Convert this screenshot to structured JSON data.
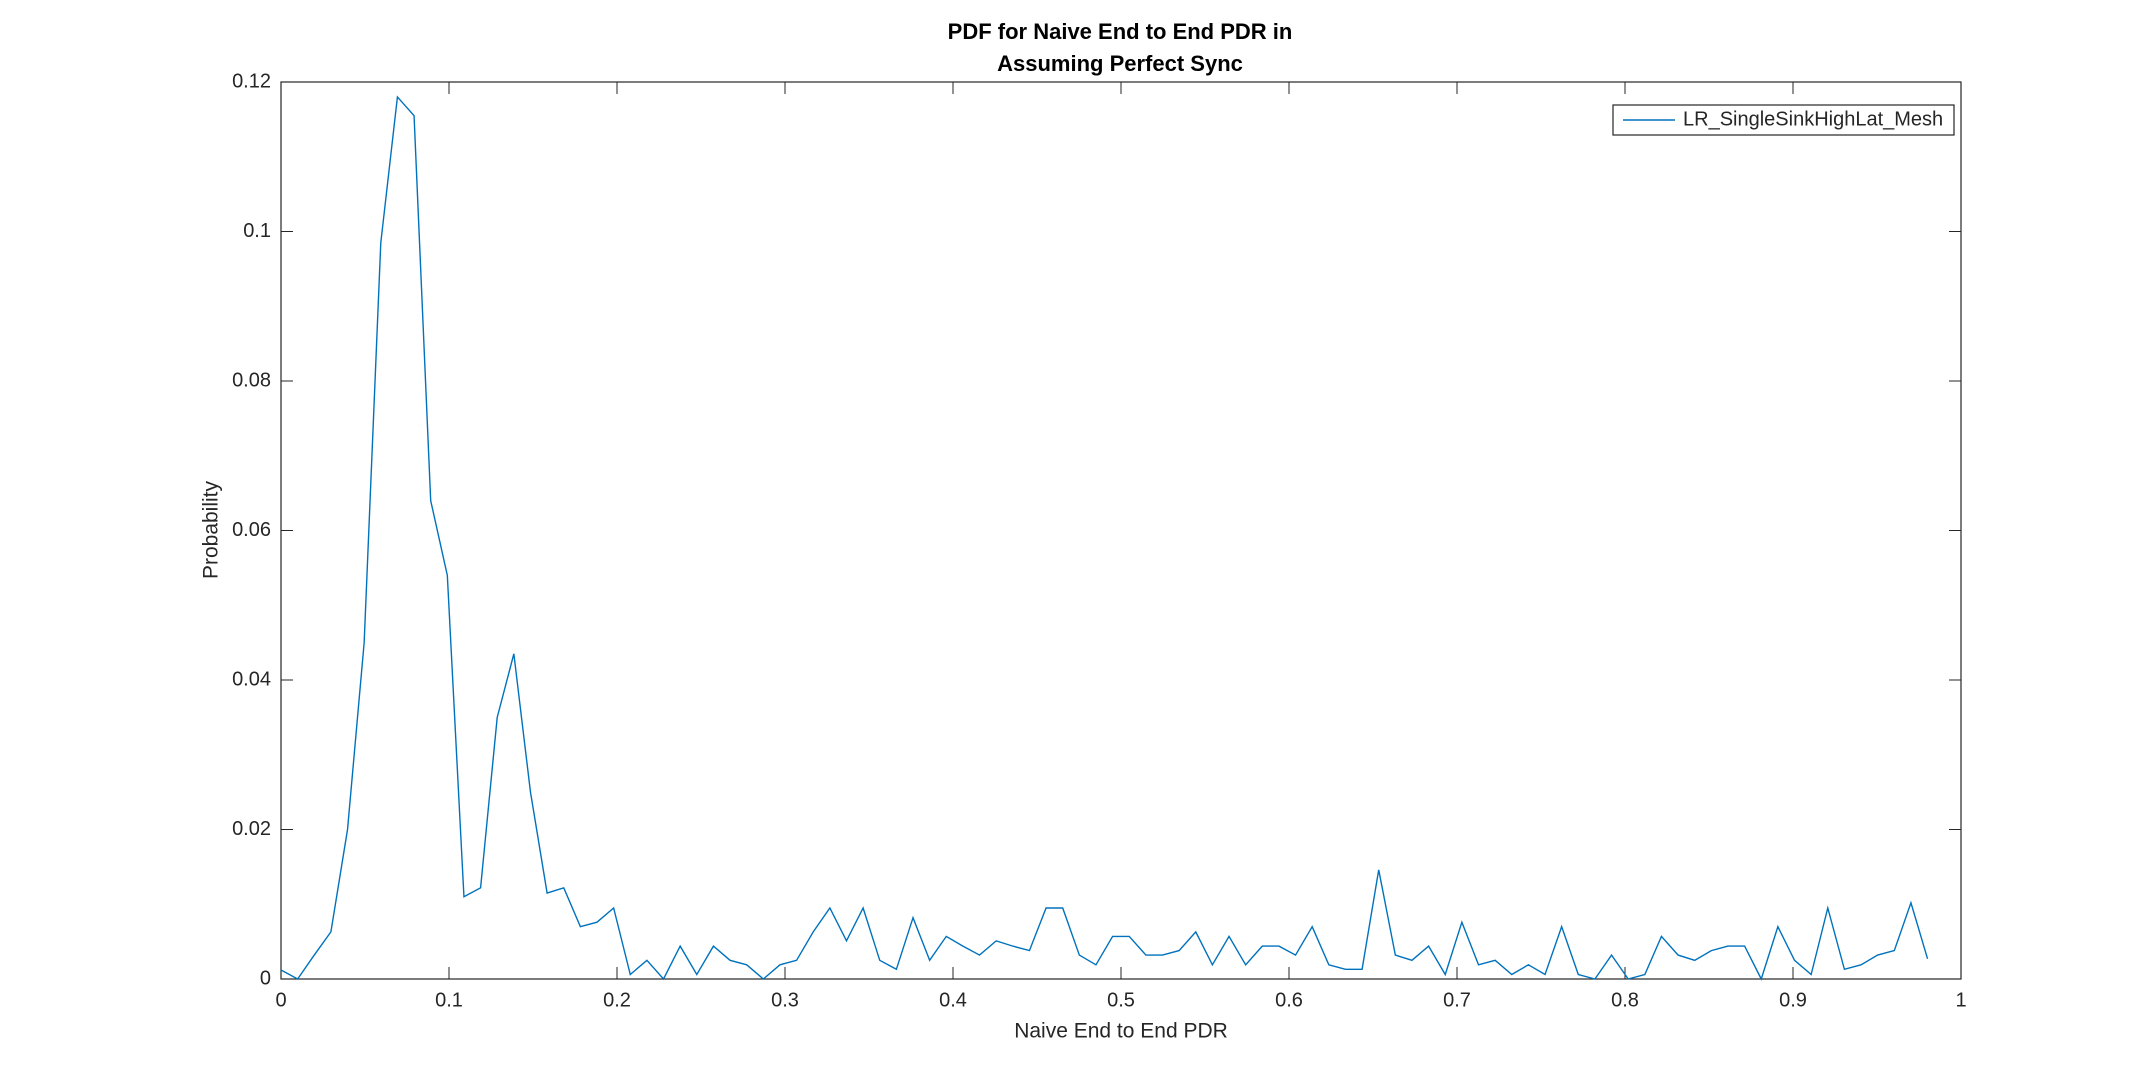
{
  "chart_data": {
    "type": "line",
    "title": [
      "PDF for Naive End to End PDR in",
      "Assuming Perfect Sync"
    ],
    "x_label": "Naive End to End PDR",
    "y_label": "Probability",
    "x": [
      0,
      0.0099,
      0.0198,
      0.0297,
      0.0396,
      0.0495,
      0.0594,
      0.0693,
      0.0792,
      0.0891,
      0.099,
      0.1089,
      0.1188,
      0.1287,
      0.1386,
      0.1485,
      0.1584,
      0.1683,
      0.1782,
      0.1881,
      0.198,
      0.2079,
      0.2178,
      0.2277,
      0.2376,
      0.2475,
      0.2574,
      0.2673,
      0.2772,
      0.2871,
      0.297,
      0.3069,
      0.3168,
      0.3267,
      0.3366,
      0.3465,
      0.3564,
      0.3663,
      0.3762,
      0.3861,
      0.396,
      0.4059,
      0.4158,
      0.4257,
      0.4356,
      0.4455,
      0.4554,
      0.4653,
      0.4752,
      0.4851,
      0.495,
      0.5049,
      0.5148,
      0.5247,
      0.5346,
      0.5445,
      0.5544,
      0.5643,
      0.5742,
      0.5841,
      0.594,
      0.6039,
      0.6138,
      0.6237,
      0.6336,
      0.6435,
      0.6534,
      0.6633,
      0.6732,
      0.6831,
      0.693,
      0.7029,
      0.7128,
      0.7227,
      0.7326,
      0.7425,
      0.7524,
      0.7623,
      0.7722,
      0.7821,
      0.792,
      0.8019,
      0.8118,
      0.8217,
      0.8316,
      0.8415,
      0.8514,
      0.8613,
      0.8712,
      0.8811,
      0.891,
      0.9009,
      0.9108,
      0.9207,
      0.9306,
      0.9405,
      0.9504,
      0.9603,
      0.9702,
      0.9801
    ],
    "series": [
      {
        "name": "LR_SingleSinkHighLat_Mesh",
        "color": "#0072bd",
        "values": [
          0.0012,
          0,
          0.0032,
          0.0063,
          0.02,
          0.045,
          0.0985,
          0.118,
          0.1155,
          0.064,
          0.054,
          0.011,
          0.0122,
          0.035,
          0.0435,
          0.025,
          0.0115,
          0.0122,
          0.007,
          0.0076,
          0.0095,
          0.0006,
          0.0025,
          0,
          0.0044,
          0.0006,
          0.0044,
          0.0025,
          0.0019,
          0,
          0.0019,
          0.0025,
          0.0063,
          0.0095,
          0.0051,
          0.0095,
          0.0025,
          0.0013,
          0.0082,
          0.0025,
          0.0057,
          0.0044,
          0.0032,
          0.0051,
          0.0044,
          0.0038,
          0.0095,
          0.0095,
          0.0032,
          0.0019,
          0.0057,
          0.0057,
          0.0032,
          0.0032,
          0.0038,
          0.0063,
          0.0019,
          0.0057,
          0.0019,
          0.0044,
          0.0044,
          0.0032,
          0.007,
          0.0019,
          0.0013,
          0.0013,
          0.0146,
          0.0032,
          0.0025,
          0.0044,
          0.0006,
          0.0076,
          0.0019,
          0.0025,
          0.0006,
          0.0019,
          0.0006,
          0.007,
          0.0006,
          0,
          0.0032,
          0,
          0.0006,
          0.0057,
          0.0032,
          0.0025,
          0.0038,
          0.0044,
          0.0044,
          0,
          0.007,
          0.0025,
          0.0006,
          0.0095,
          0.0013,
          0.0019,
          0.0032,
          0.0038,
          0.0102,
          0.0027
        ]
      }
    ],
    "xlim": [
      0,
      1
    ],
    "xticks": [
      0,
      0.1,
      0.2,
      0.3,
      0.4,
      0.5,
      0.6,
      0.7,
      0.8,
      0.9,
      1
    ],
    "ylim": [
      0,
      0.12
    ],
    "yticks": [
      0,
      0.02,
      0.04,
      0.06,
      0.08,
      0.1,
      0.12
    ],
    "legend": "upper right"
  }
}
